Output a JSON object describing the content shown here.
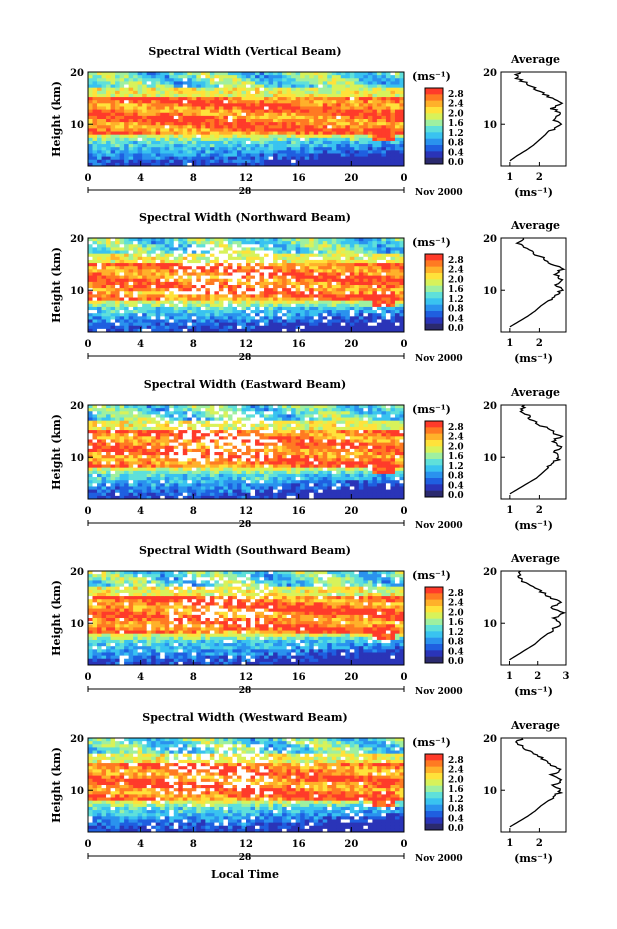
{
  "figure": {
    "xlabel": "Local Time",
    "date_label": "Nov 2000",
    "day_label": "28"
  },
  "colors": {
    "colormap": [
      "#2b2a6e",
      "#2a34b8",
      "#1f5fe0",
      "#2a92ee",
      "#39c3f0",
      "#5fe0da",
      "#9ff0a0",
      "#d8f25a",
      "#ffe23a",
      "#ffb12a",
      "#ff7a22",
      "#ff3b2a"
    ],
    "trace": "#000000",
    "axis": "#000000"
  },
  "chart_data": [
    {
      "type": "heatmap",
      "title": "Spectral Width (Vertical Beam)",
      "ylabel": "Height (km)",
      "unit_label": "(ms⁻¹)",
      "x_ticks": [
        "0",
        "4",
        "8",
        "12",
        "16",
        "20",
        "0"
      ],
      "y_ticks": [
        "20",
        "10"
      ],
      "colorbar_ticks": [
        "2.8",
        "2.4",
        "2.0",
        "1.6",
        "1.2",
        "0.8",
        "0.4",
        "0.0"
      ],
      "xlim": [
        0,
        24
      ],
      "ylim": [
        2,
        20
      ],
      "clim": [
        0,
        2.8
      ],
      "gaps": 0.02,
      "profile": {
        "title": "Average",
        "xlabel": "(ms⁻¹)",
        "x_ticks": [
          "1",
          "2"
        ],
        "y_ticks": [
          "20",
          "10"
        ],
        "xlim": [
          0.7,
          2.9
        ],
        "ylim": [
          2,
          20
        ],
        "height": [
          3,
          4,
          5,
          6,
          7,
          8,
          9,
          10,
          11,
          12,
          13,
          14,
          15,
          16,
          17,
          18,
          19,
          20
        ],
        "width": [
          1.0,
          1.25,
          1.55,
          1.8,
          2.0,
          2.2,
          2.45,
          2.65,
          2.5,
          2.75,
          2.45,
          2.7,
          2.4,
          2.1,
          1.8,
          1.5,
          1.2,
          1.35
        ]
      }
    },
    {
      "type": "heatmap",
      "title": "Spectral Width (Northward Beam)",
      "ylabel": "Height (km)",
      "unit_label": "(ms⁻¹)",
      "x_ticks": [
        "0",
        "4",
        "8",
        "12",
        "16",
        "20",
        "0"
      ],
      "y_ticks": [
        "20",
        "10"
      ],
      "colorbar_ticks": [
        "2.8",
        "2.4",
        "2.0",
        "1.6",
        "1.2",
        "0.8",
        "0.4",
        "0.0"
      ],
      "xlim": [
        0,
        24
      ],
      "ylim": [
        2,
        20
      ],
      "clim": [
        0,
        2.8
      ],
      "gaps": 0.18,
      "profile": {
        "title": "Average",
        "xlabel": "(ms⁻¹)",
        "x_ticks": [
          "1",
          "2"
        ],
        "y_ticks": [
          "20",
          "10"
        ],
        "xlim": [
          0.7,
          2.9
        ],
        "ylim": [
          2,
          20
        ],
        "height": [
          3,
          4,
          5,
          6,
          7,
          8,
          9,
          10,
          11,
          12,
          13,
          14,
          15,
          16,
          17,
          18,
          19,
          20
        ],
        "width": [
          1.0,
          1.3,
          1.6,
          1.85,
          2.05,
          2.3,
          2.55,
          2.75,
          2.6,
          2.8,
          2.5,
          2.75,
          2.45,
          2.15,
          1.85,
          1.55,
          1.3,
          1.45
        ]
      }
    },
    {
      "type": "heatmap",
      "title": "Spectral Width (Eastward Beam)",
      "ylabel": "Height (km)",
      "unit_label": "(ms⁻¹)",
      "x_ticks": [
        "0",
        "4",
        "8",
        "12",
        "16",
        "20",
        "0"
      ],
      "y_ticks": [
        "20",
        "10"
      ],
      "colorbar_ticks": [
        "2.8",
        "2.4",
        "2.0",
        "1.6",
        "1.2",
        "0.8",
        "0.4",
        "0.0"
      ],
      "xlim": [
        0,
        24
      ],
      "ylim": [
        2,
        20
      ],
      "clim": [
        0,
        2.8
      ],
      "gaps": 0.16,
      "profile": {
        "title": "Average",
        "xlabel": "(ms⁻¹)",
        "x_ticks": [
          "1",
          "2"
        ],
        "y_ticks": [
          "20",
          "10"
        ],
        "xlim": [
          0.7,
          2.9
        ],
        "ylim": [
          2,
          20
        ],
        "height": [
          3,
          4,
          5,
          6,
          7,
          8,
          9,
          10,
          11,
          12,
          13,
          14,
          15,
          16,
          17,
          18,
          19,
          20
        ],
        "width": [
          1.0,
          1.3,
          1.6,
          1.9,
          2.1,
          2.3,
          2.5,
          2.7,
          2.55,
          2.75,
          2.45,
          2.7,
          2.4,
          2.1,
          1.8,
          1.6,
          1.4,
          1.5
        ]
      }
    },
    {
      "type": "heatmap",
      "title": "Spectral Width (Southward Beam)",
      "ylabel": "Height (km)",
      "unit_label": "(ms⁻¹)",
      "x_ticks": [
        "0",
        "4",
        "8",
        "12",
        "16",
        "20",
        "0"
      ],
      "y_ticks": [
        "20",
        "10"
      ],
      "colorbar_ticks": [
        "2.8",
        "2.4",
        "2.0",
        "1.6",
        "1.2",
        "0.8",
        "0.4",
        "0.0"
      ],
      "xlim": [
        0,
        24
      ],
      "ylim": [
        2,
        20
      ],
      "clim": [
        0,
        2.8
      ],
      "gaps": 0.14,
      "profile": {
        "title": "Average",
        "xlabel": "(ms⁻¹)",
        "x_ticks": [
          "1",
          "2",
          "3"
        ],
        "y_ticks": [
          "20",
          "10"
        ],
        "xlim": [
          0.7,
          3.0
        ],
        "ylim": [
          2,
          20
        ],
        "height": [
          3,
          4,
          5,
          6,
          7,
          8,
          9,
          10,
          11,
          12,
          13,
          14,
          15,
          16,
          17,
          18,
          19,
          20
        ],
        "width": [
          1.0,
          1.3,
          1.6,
          1.9,
          2.1,
          2.35,
          2.6,
          2.85,
          2.6,
          2.9,
          2.5,
          2.8,
          2.45,
          2.15,
          1.8,
          1.5,
          1.3,
          1.4
        ]
      }
    },
    {
      "type": "heatmap",
      "title": "Spectral Width (Westward Beam)",
      "ylabel": "Height (km)",
      "unit_label": "(ms⁻¹)",
      "x_ticks": [
        "0",
        "4",
        "8",
        "12",
        "16",
        "20",
        "0"
      ],
      "y_ticks": [
        "20",
        "10"
      ],
      "colorbar_ticks": [
        "2.8",
        "2.4",
        "2.0",
        "1.6",
        "1.2",
        "0.8",
        "0.4",
        "0.0"
      ],
      "xlim": [
        0,
        24
      ],
      "ylim": [
        2,
        20
      ],
      "clim": [
        0,
        2.8
      ],
      "gaps": 0.17,
      "profile": {
        "title": "Average",
        "xlabel": "(ms⁻¹)",
        "x_ticks": [
          "1",
          "2"
        ],
        "y_ticks": [
          "20",
          "10"
        ],
        "xlim": [
          0.7,
          2.9
        ],
        "ylim": [
          2,
          20
        ],
        "height": [
          3,
          4,
          5,
          6,
          7,
          8,
          9,
          10,
          11,
          12,
          13,
          14,
          15,
          16,
          17,
          18,
          19,
          20
        ],
        "width": [
          1.0,
          1.3,
          1.6,
          1.85,
          2.05,
          2.3,
          2.55,
          2.75,
          2.5,
          2.8,
          2.45,
          2.7,
          2.35,
          2.1,
          1.8,
          1.45,
          1.25,
          1.4
        ]
      }
    }
  ]
}
